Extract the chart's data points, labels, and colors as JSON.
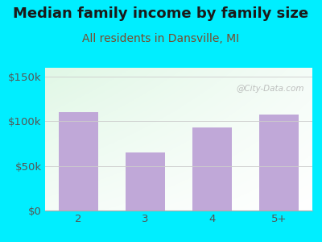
{
  "title": "Median family income by family size",
  "subtitle": "All residents in Dansville, MI",
  "categories": [
    "2",
    "3",
    "4",
    "5+"
  ],
  "values": [
    110000,
    65000,
    93000,
    108000
  ],
  "bar_color": "#c0a8d8",
  "yticks": [
    0,
    50000,
    100000,
    150000
  ],
  "ytick_labels": [
    "$0",
    "$50k",
    "$100k",
    "$150k"
  ],
  "ylim": [
    0,
    160000
  ],
  "title_fontsize": 13,
  "subtitle_fontsize": 10,
  "tick_label_fontsize": 9.5,
  "title_color": "#1a1a1a",
  "subtitle_color": "#7a4a2a",
  "tick_color": "#555555",
  "bg_outer": "#00eeff",
  "watermark": "@City-Data.com",
  "grad_tl": [
    0.88,
    0.97,
    0.9
  ],
  "grad_tr": [
    0.96,
    0.99,
    0.97
  ],
  "grad_bl": [
    0.96,
    0.99,
    0.97
  ],
  "grad_br": [
    1.0,
    1.0,
    1.0
  ]
}
